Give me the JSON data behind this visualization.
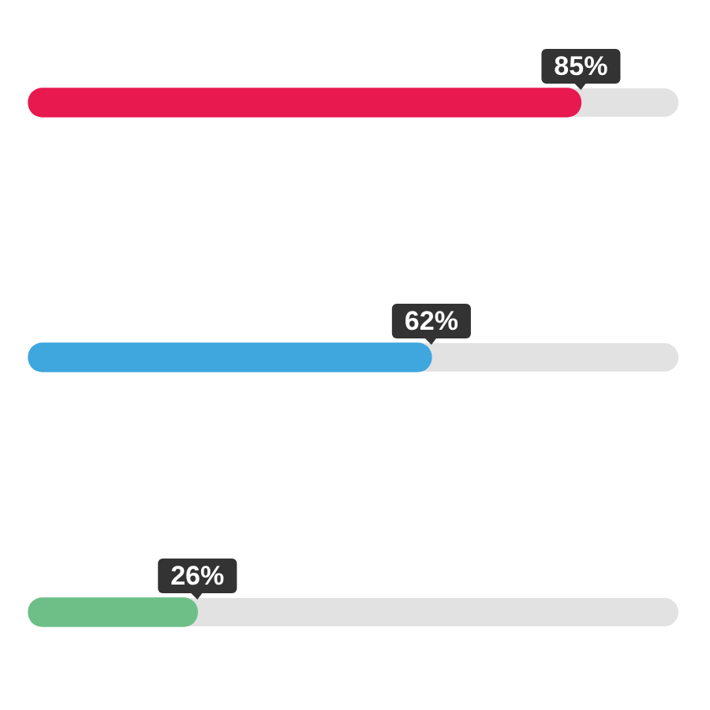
{
  "chart_data": {
    "type": "bar",
    "orientation": "horizontal",
    "categories": [
      null,
      null,
      null
    ],
    "values": [
      85,
      62,
      26
    ],
    "colors": [
      "#e8194f",
      "#3fa6de",
      "#6dbf87"
    ],
    "value_labels": [
      "85%",
      "62%",
      "26%"
    ],
    "xlim": [
      0,
      100
    ],
    "tick_labels": false,
    "grid": false,
    "legend": false
  }
}
